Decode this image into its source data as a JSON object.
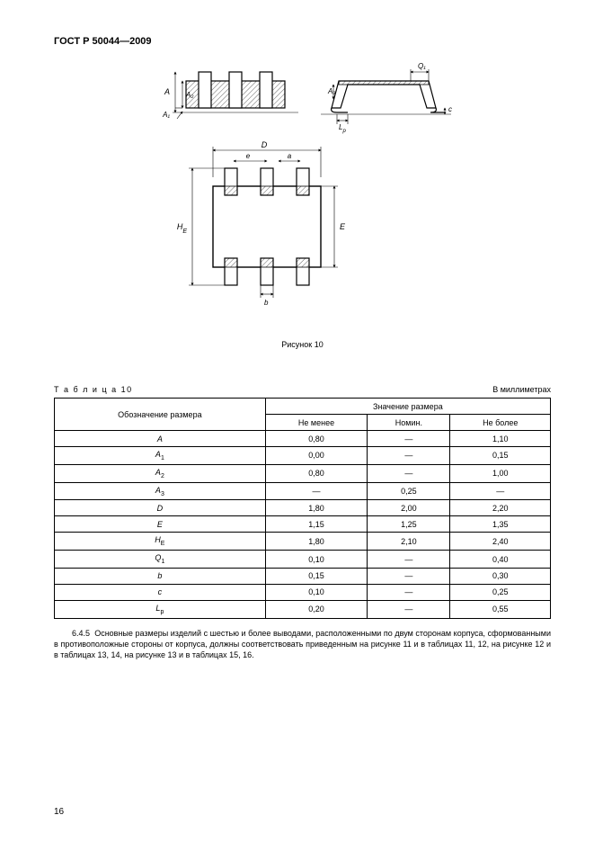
{
  "doc_header": "ГОСТ Р 50044—2009",
  "figure_caption": "Рисунок 10",
  "table_label": "Т а б л и ц а  10",
  "table_units": "В миллиметрах",
  "table": {
    "col1_header": "Обозначение размера",
    "group_header": "Значение размера",
    "sub_headers": [
      "Не менее",
      "Номин.",
      "Не более"
    ],
    "rows": [
      {
        "label": "A",
        "sub": "",
        "min": "0,80",
        "nom": "—",
        "max": "1,10"
      },
      {
        "label": "A",
        "sub": "1",
        "min": "0,00",
        "nom": "—",
        "max": "0,15"
      },
      {
        "label": "A",
        "sub": "2",
        "min": "0,80",
        "nom": "—",
        "max": "1,00"
      },
      {
        "label": "A",
        "sub": "3",
        "min": "—",
        "nom": "0,25",
        "max": "—"
      },
      {
        "label": "D",
        "sub": "",
        "min": "1,80",
        "nom": "2,00",
        "max": "2,20"
      },
      {
        "label": "E",
        "sub": "",
        "min": "1,15",
        "nom": "1,25",
        "max": "1,35"
      },
      {
        "label": "H",
        "sub": "E",
        "min": "1,80",
        "nom": "2,10",
        "max": "2,40"
      },
      {
        "label": "Q",
        "sub": "1",
        "min": "0,10",
        "nom": "—",
        "max": "0,40"
      },
      {
        "label": "b",
        "sub": "",
        "min": "0,15",
        "nom": "—",
        "max": "0,30"
      },
      {
        "label": "c",
        "sub": "",
        "min": "0,10",
        "nom": "—",
        "max": "0,25"
      },
      {
        "label": "L",
        "sub": "p",
        "min": "0,20",
        "nom": "—",
        "max": "0,55"
      }
    ]
  },
  "paragraph_num": "6.4.5",
  "paragraph_text": "Основные размеры изделий с шестью и более выводами, расположенными по двум сторонам корпуса, сформованными в противоположные стороны от корпуса, должны соответствовать приведенным на рисунке 11 и в таблицах 11, 12, на рисунке 12 и в таблицах 13, 14, на рисунке 13 и в таблицах 15, 16.",
  "page_number": "16",
  "diagram": {
    "stroke": "#000000",
    "stroke_width": 1.2,
    "thin_stroke": 0.6,
    "hatch_spacing": 3
  }
}
